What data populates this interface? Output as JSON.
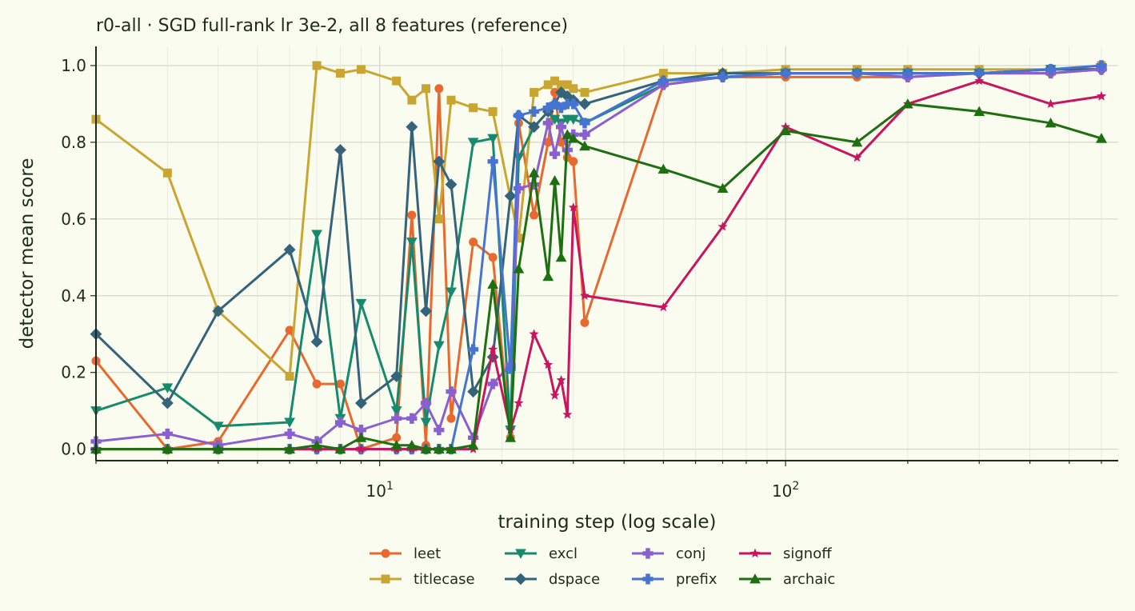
{
  "chart_data": {
    "type": "line",
    "title": "r0-all · SGD full-rank lr 3e-2, all 8 features (reference)",
    "xlabel": "training step (log scale)",
    "ylabel": "detector mean score",
    "x_scale": "log",
    "xlim": [
      2,
      660
    ],
    "ylim": [
      -0.03,
      1.05
    ],
    "x_ticks": [
      {
        "value": 10,
        "label": "10^1"
      },
      {
        "value": 100,
        "label": "10^2"
      }
    ],
    "y_ticks": [
      0.0,
      0.2,
      0.4,
      0.6,
      0.8,
      1.0
    ],
    "y_tick_labels": [
      "0.0",
      "0.2",
      "0.4",
      "0.6",
      "0.8",
      "1.0"
    ],
    "grid": true,
    "legend_position": "bottom-center",
    "series": [
      {
        "name": "leet",
        "color": "#e8692f",
        "marker": "circle",
        "x": [
          2,
          3,
          4,
          6,
          7,
          8,
          9,
          11,
          12,
          13,
          14,
          15,
          17,
          19,
          21,
          22,
          24,
          26,
          27,
          28,
          29,
          30,
          32,
          50,
          70,
          100,
          150,
          200,
          300,
          450,
          600,
          600
        ],
        "y": [
          0.23,
          0.0,
          0.02,
          0.31,
          0.17,
          0.17,
          0.0,
          0.03,
          0.61,
          0.01,
          0.94,
          0.08,
          0.54,
          0.5,
          0.03,
          0.85,
          0.61,
          0.8,
          0.93,
          0.8,
          0.76,
          0.75,
          0.33,
          0.95,
          0.97,
          0.97,
          0.97,
          0.97,
          0.98,
          0.98,
          0.99,
          0.99
        ]
      },
      {
        "name": "titlecase",
        "color": "#c9a632",
        "marker": "square",
        "x": [
          2,
          3,
          4,
          6,
          7,
          8,
          9,
          11,
          12,
          13,
          14,
          15,
          17,
          19,
          22,
          24,
          26,
          27,
          28,
          29,
          30,
          32,
          50,
          70,
          100,
          150,
          200,
          300,
          450,
          600,
          600
        ],
        "y": [
          0.86,
          0.72,
          0.36,
          0.19,
          1.0,
          0.98,
          0.99,
          0.96,
          0.91,
          0.94,
          0.6,
          0.91,
          0.89,
          0.88,
          0.55,
          0.93,
          0.95,
          0.96,
          0.95,
          0.95,
          0.94,
          0.93,
          0.98,
          0.98,
          0.99,
          0.99,
          0.99,
          0.99,
          0.99,
          1.0,
          1.0
        ]
      },
      {
        "name": "excl",
        "color": "#178a6e",
        "marker": "triangle-down",
        "x": [
          2,
          3,
          4,
          6,
          7,
          8,
          9,
          11,
          12,
          13,
          14,
          15,
          17,
          19,
          21,
          22,
          24,
          26,
          27,
          28,
          29,
          30,
          32,
          50,
          70,
          100,
          150,
          200,
          300,
          450,
          600,
          600
        ],
        "y": [
          0.1,
          0.16,
          0.06,
          0.07,
          0.56,
          0.08,
          0.38,
          0.1,
          0.54,
          0.07,
          0.27,
          0.41,
          0.8,
          0.81,
          0.05,
          0.76,
          0.84,
          0.88,
          0.86,
          0.85,
          0.86,
          0.86,
          0.85,
          0.95,
          0.97,
          0.98,
          0.98,
          0.98,
          0.98,
          0.99,
          0.99,
          0.99
        ]
      },
      {
        "name": "dspace",
        "color": "#35637a",
        "marker": "diamond",
        "x": [
          2,
          3,
          4,
          6,
          7,
          8,
          9,
          11,
          12,
          13,
          14,
          15,
          17,
          19,
          21,
          22,
          24,
          26,
          27,
          28,
          29,
          30,
          32,
          50,
          70,
          100,
          150,
          200,
          300,
          450,
          600,
          600
        ],
        "y": [
          0.3,
          0.12,
          0.36,
          0.52,
          0.28,
          0.78,
          0.12,
          0.19,
          0.84,
          0.36,
          0.75,
          0.69,
          0.15,
          0.24,
          0.66,
          0.87,
          0.84,
          0.88,
          0.9,
          0.93,
          0.92,
          0.91,
          0.9,
          0.96,
          0.98,
          0.98,
          0.98,
          0.98,
          0.98,
          0.99,
          0.99,
          0.99
        ]
      },
      {
        "name": "conj",
        "color": "#8a5fd0",
        "marker": "plus",
        "x": [
          2,
          3,
          4,
          6,
          7,
          8,
          9,
          11,
          12,
          13,
          14,
          15,
          17,
          19,
          21,
          22,
          24,
          26,
          27,
          28,
          29,
          30,
          32,
          50,
          70,
          100,
          150,
          200,
          300,
          450,
          600,
          600
        ],
        "y": [
          0.02,
          0.04,
          0.01,
          0.04,
          0.02,
          0.07,
          0.05,
          0.08,
          0.08,
          0.12,
          0.05,
          0.15,
          0.03,
          0.17,
          0.22,
          0.68,
          0.69,
          0.85,
          0.77,
          0.84,
          0.78,
          0.82,
          0.82,
          0.95,
          0.97,
          0.98,
          0.98,
          0.97,
          0.98,
          0.98,
          0.99,
          0.99
        ]
      },
      {
        "name": "prefix",
        "color": "#4674d0",
        "marker": "plus",
        "x": [
          2,
          3,
          4,
          6,
          7,
          8,
          9,
          11,
          12,
          13,
          14,
          15,
          17,
          19,
          21,
          22,
          24,
          26,
          27,
          28,
          29,
          30,
          32,
          50,
          70,
          100,
          150,
          200,
          300,
          450,
          600,
          600
        ],
        "y": [
          0.0,
          0.0,
          0.0,
          0.0,
          0.0,
          0.0,
          0.0,
          0.0,
          0.0,
          0.0,
          0.0,
          0.0,
          0.26,
          0.75,
          0.21,
          0.87,
          0.88,
          0.89,
          0.9,
          0.89,
          0.9,
          0.9,
          0.85,
          0.96,
          0.97,
          0.98,
          0.98,
          0.98,
          0.98,
          0.99,
          1.0,
          1.0
        ]
      },
      {
        "name": "signoff",
        "color": "#c8155e",
        "marker": "star",
        "x": [
          2,
          3,
          4,
          6,
          7,
          8,
          9,
          11,
          12,
          13,
          14,
          15,
          17,
          19,
          21,
          22,
          24,
          26,
          27,
          28,
          29,
          30,
          32,
          50,
          70,
          100,
          150,
          200,
          300,
          450,
          600,
          600
        ],
        "y": [
          0.0,
          0.0,
          0.0,
          0.0,
          0.0,
          0.0,
          0.0,
          0.0,
          0.0,
          0.0,
          0.0,
          0.0,
          0.0,
          0.26,
          0.05,
          0.12,
          0.3,
          0.22,
          0.14,
          0.18,
          0.09,
          0.63,
          0.4,
          0.37,
          0.58,
          0.84,
          0.76,
          0.9,
          0.96,
          0.9,
          0.92,
          0.92
        ]
      },
      {
        "name": "archaic",
        "color": "#1e6e12",
        "marker": "triangle-up",
        "x": [
          2,
          3,
          4,
          6,
          7,
          8,
          9,
          11,
          12,
          13,
          14,
          15,
          17,
          19,
          21,
          22,
          24,
          26,
          27,
          28,
          29,
          30,
          32,
          50,
          70,
          100,
          150,
          200,
          300,
          450,
          600,
          600
        ],
        "y": [
          0.0,
          0.0,
          0.0,
          0.0,
          0.01,
          0.0,
          0.03,
          0.01,
          0.01,
          0.0,
          0.0,
          0.0,
          0.01,
          0.43,
          0.03,
          0.47,
          0.72,
          0.45,
          0.7,
          0.5,
          0.82,
          0.81,
          0.79,
          0.73,
          0.68,
          0.83,
          0.8,
          0.9,
          0.88,
          0.85,
          0.81,
          0.81
        ]
      }
    ]
  }
}
